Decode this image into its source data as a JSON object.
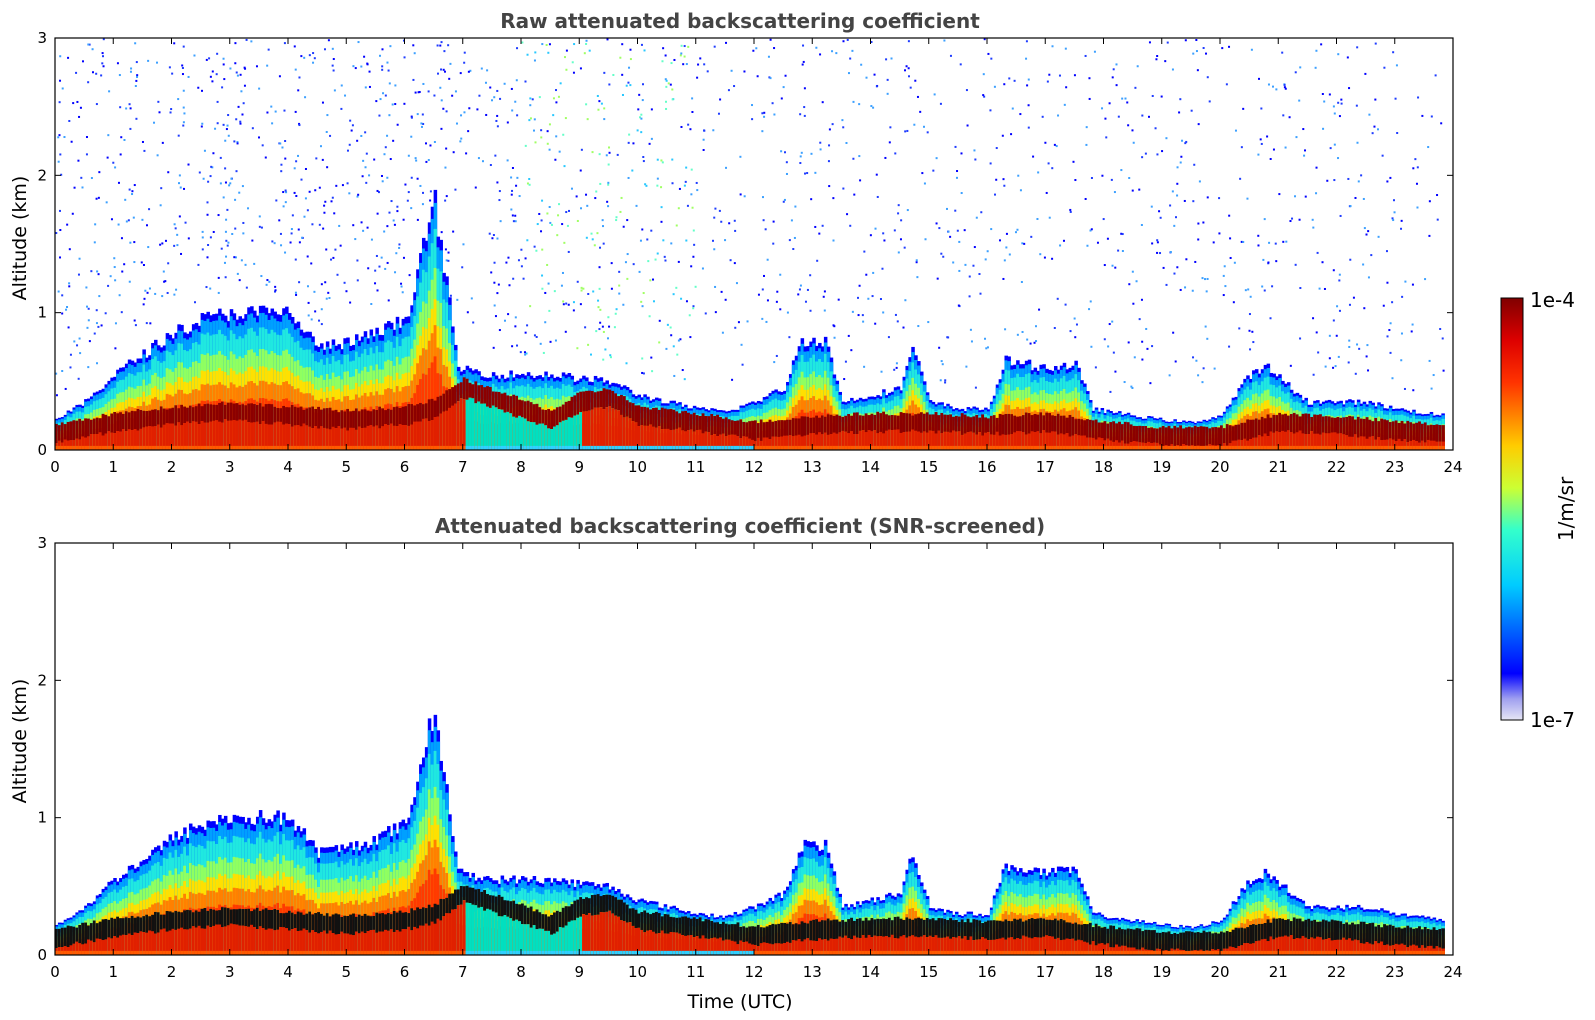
{
  "chart_data": [
    {
      "type": "heatmap",
      "title": "Raw attenuated backscattering coefficient",
      "xlabel": "",
      "ylabel": "Altitude (km)",
      "xlim": [
        0,
        24
      ],
      "ylim": [
        0,
        3
      ],
      "x_ticks": [
        "0",
        "1",
        "2",
        "3",
        "4",
        "5",
        "6",
        "7",
        "8",
        "9",
        "10",
        "11",
        "12",
        "13",
        "14",
        "15",
        "16",
        "17",
        "18",
        "19",
        "20",
        "21",
        "22",
        "23",
        "24"
      ],
      "y_ticks": [
        "0",
        "1",
        "2",
        "3"
      ],
      "data_time_range_utc": [
        0,
        23.83
      ],
      "screened": false,
      "mixing_layer_top_km": [
        [
          0,
          0.22
        ],
        [
          0.5,
          0.35
        ],
        [
          1,
          0.55
        ],
        [
          1.5,
          0.7
        ],
        [
          2,
          0.85
        ],
        [
          2.5,
          0.95
        ],
        [
          3,
          1.0
        ],
        [
          3.5,
          1.0
        ],
        [
          4,
          1.0
        ],
        [
          4.5,
          0.75
        ],
        [
          5,
          0.78
        ],
        [
          5.5,
          0.85
        ],
        [
          6,
          0.95
        ],
        [
          6.5,
          1.8
        ],
        [
          6.9,
          0.6
        ],
        [
          7.5,
          0.55
        ],
        [
          8,
          0.55
        ],
        [
          8.5,
          0.55
        ],
        [
          9,
          0.52
        ],
        [
          9.5,
          0.5
        ],
        [
          10,
          0.4
        ],
        [
          10.5,
          0.35
        ],
        [
          11,
          0.3
        ],
        [
          11.5,
          0.28
        ],
        [
          12,
          0.35
        ],
        [
          12.5,
          0.45
        ],
        [
          12.8,
          0.8
        ],
        [
          13.2,
          0.8
        ],
        [
          13.5,
          0.35
        ],
        [
          14,
          0.4
        ],
        [
          14.5,
          0.45
        ],
        [
          14.7,
          0.75
        ],
        [
          15,
          0.35
        ],
        [
          15.5,
          0.3
        ],
        [
          16,
          0.3
        ],
        [
          16.3,
          0.65
        ],
        [
          17,
          0.6
        ],
        [
          17.5,
          0.62
        ],
        [
          17.8,
          0.3
        ],
        [
          18.5,
          0.25
        ],
        [
          19,
          0.22
        ],
        [
          19.5,
          0.2
        ],
        [
          20,
          0.25
        ],
        [
          20.5,
          0.55
        ],
        [
          20.8,
          0.6
        ],
        [
          21.2,
          0.45
        ],
        [
          21.5,
          0.35
        ],
        [
          22,
          0.35
        ],
        [
          22.5,
          0.35
        ],
        [
          23,
          0.3
        ],
        [
          23.5,
          0.27
        ],
        [
          23.83,
          0.25
        ]
      ],
      "high_signal_layer_km": [
        [
          0,
          0.12
        ],
        [
          1,
          0.2
        ],
        [
          2,
          0.25
        ],
        [
          3,
          0.28
        ],
        [
          4,
          0.25
        ],
        [
          5,
          0.22
        ],
        [
          6,
          0.25
        ],
        [
          6.5,
          0.3
        ],
        [
          7,
          0.45
        ],
        [
          8,
          0.3
        ],
        [
          8.5,
          0.22
        ],
        [
          9,
          0.35
        ],
        [
          9.5,
          0.38
        ],
        [
          10,
          0.25
        ],
        [
          11,
          0.2
        ],
        [
          12,
          0.14
        ],
        [
          13,
          0.18
        ],
        [
          14,
          0.2
        ],
        [
          15,
          0.2
        ],
        [
          16,
          0.18
        ],
        [
          17,
          0.2
        ],
        [
          18,
          0.14
        ],
        [
          19,
          0.1
        ],
        [
          20,
          0.1
        ],
        [
          21,
          0.2
        ],
        [
          22,
          0.18
        ],
        [
          23,
          0.14
        ],
        [
          23.83,
          0.12
        ]
      ]
    },
    {
      "type": "heatmap",
      "title": "Attenuated backscattering coefficient (SNR-screened)",
      "xlabel": "Time (UTC)",
      "ylabel": "Altitude (km)",
      "xlim": [
        0,
        24
      ],
      "ylim": [
        0,
        3
      ],
      "x_ticks": [
        "0",
        "1",
        "2",
        "3",
        "4",
        "5",
        "6",
        "7",
        "8",
        "9",
        "10",
        "11",
        "12",
        "13",
        "14",
        "15",
        "16",
        "17",
        "18",
        "19",
        "20",
        "21",
        "22",
        "23",
        "24"
      ],
      "y_ticks": [
        "0",
        "1",
        "2",
        "3"
      ],
      "data_time_range_utc": [
        0,
        23.83
      ],
      "screened": true
    }
  ],
  "colorbar": {
    "label": "1/m/sr",
    "max_label": "1e-4",
    "min_label": "1e-7",
    "scale": "log",
    "colormap": "jet"
  }
}
